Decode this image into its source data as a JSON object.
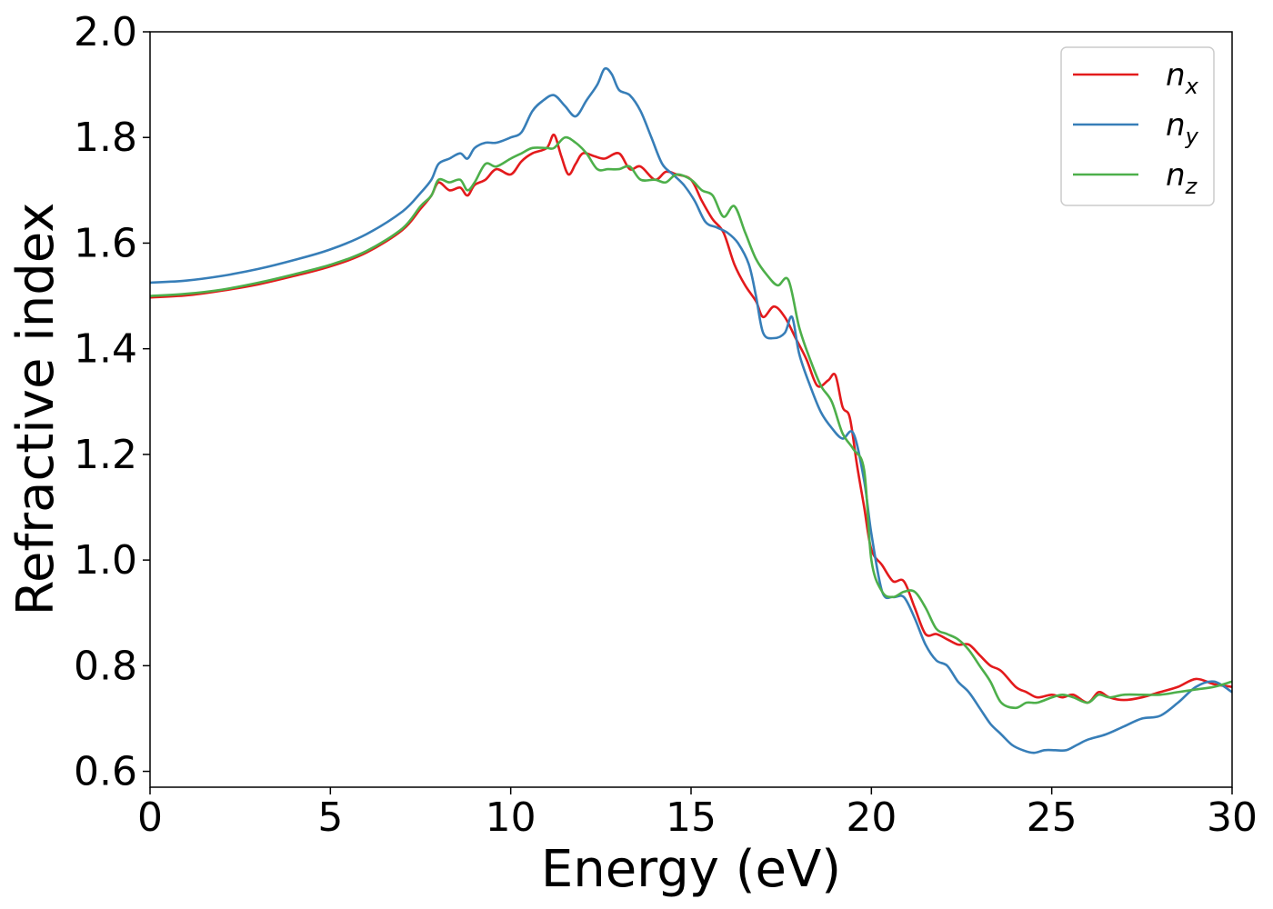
{
  "chart_data": {
    "type": "line",
    "xlabel": "Energy (eV)",
    "ylabel": "Refractive index",
    "xlim": [
      0,
      30
    ],
    "ylim": [
      0.57,
      2.0
    ],
    "xticks": [
      0,
      5,
      10,
      15,
      20,
      25,
      30
    ],
    "yticks": [
      0.6,
      0.8,
      1.0,
      1.2,
      1.4,
      1.6,
      1.8,
      2.0
    ],
    "xtick_labels": [
      "0",
      "5",
      "10",
      "15",
      "20",
      "25",
      "30"
    ],
    "ytick_labels": [
      "0.6",
      "0.8",
      "1.0",
      "1.2",
      "1.4",
      "1.6",
      "1.8",
      "2.0"
    ],
    "grid": false,
    "legend_position": "top-right",
    "series": [
      {
        "name": "n_x",
        "legend_base": "n",
        "legend_sub": "x",
        "color": "#e31a1c",
        "x": [
          0,
          1,
          2,
          3,
          4,
          5,
          6,
          7,
          7.5,
          7.8,
          8.0,
          8.3,
          8.6,
          8.8,
          9.0,
          9.3,
          9.6,
          10.0,
          10.3,
          10.6,
          11.0,
          11.2,
          11.4,
          11.6,
          11.8,
          12.0,
          12.3,
          12.6,
          13.0,
          13.3,
          13.6,
          14.0,
          14.3,
          14.6,
          15.0,
          15.3,
          15.6,
          15.9,
          16.2,
          16.5,
          16.8,
          17.0,
          17.3,
          17.6,
          17.9,
          18.2,
          18.5,
          18.8,
          19.0,
          19.2,
          19.4,
          19.6,
          19.8,
          20.0,
          20.3,
          20.6,
          20.9,
          21.2,
          21.5,
          21.8,
          22.1,
          22.4,
          22.7,
          23.0,
          23.3,
          23.6,
          24.0,
          24.3,
          24.6,
          25.0,
          25.3,
          25.6,
          26.0,
          26.3,
          26.6,
          27.0,
          27.5,
          28.0,
          28.5,
          29.0,
          29.5,
          30.0
        ],
        "y": [
          1.497,
          1.501,
          1.51,
          1.522,
          1.538,
          1.556,
          1.582,
          1.625,
          1.665,
          1.69,
          1.715,
          1.7,
          1.705,
          1.69,
          1.71,
          1.72,
          1.74,
          1.73,
          1.755,
          1.77,
          1.78,
          1.805,
          1.765,
          1.73,
          1.75,
          1.77,
          1.765,
          1.76,
          1.77,
          1.74,
          1.745,
          1.72,
          1.735,
          1.73,
          1.72,
          1.68,
          1.645,
          1.62,
          1.56,
          1.52,
          1.49,
          1.46,
          1.48,
          1.46,
          1.42,
          1.38,
          1.33,
          1.34,
          1.35,
          1.29,
          1.27,
          1.18,
          1.1,
          1.02,
          0.99,
          0.96,
          0.96,
          0.91,
          0.86,
          0.86,
          0.85,
          0.84,
          0.84,
          0.82,
          0.8,
          0.79,
          0.76,
          0.75,
          0.74,
          0.745,
          0.74,
          0.745,
          0.73,
          0.75,
          0.74,
          0.735,
          0.74,
          0.75,
          0.76,
          0.775,
          0.765,
          0.76
        ]
      },
      {
        "name": "n_y",
        "legend_base": "n",
        "legend_sub": "y",
        "color": "#377eb8",
        "x": [
          0,
          1,
          2,
          3,
          4,
          5,
          6,
          7,
          7.5,
          7.8,
          8.0,
          8.3,
          8.6,
          8.8,
          9.0,
          9.3,
          9.6,
          10.0,
          10.3,
          10.6,
          10.9,
          11.2,
          11.5,
          11.8,
          12.1,
          12.4,
          12.6,
          12.8,
          13.0,
          13.3,
          13.6,
          13.9,
          14.2,
          14.5,
          14.8,
          15.1,
          15.4,
          15.7,
          16.0,
          16.3,
          16.6,
          16.8,
          17.0,
          17.3,
          17.6,
          17.8,
          18.0,
          18.3,
          18.6,
          18.9,
          19.2,
          19.5,
          19.8,
          20.0,
          20.3,
          20.6,
          20.9,
          21.2,
          21.5,
          21.8,
          22.1,
          22.4,
          22.7,
          23.0,
          23.3,
          23.6,
          23.9,
          24.2,
          24.5,
          24.8,
          25.1,
          25.4,
          25.7,
          26.0,
          26.5,
          27.0,
          27.5,
          28.0,
          28.5,
          29.0,
          29.5,
          30.0
        ],
        "y": [
          1.525,
          1.529,
          1.538,
          1.551,
          1.568,
          1.588,
          1.617,
          1.66,
          1.695,
          1.72,
          1.75,
          1.76,
          1.77,
          1.76,
          1.78,
          1.79,
          1.79,
          1.8,
          1.81,
          1.85,
          1.87,
          1.88,
          1.86,
          1.84,
          1.87,
          1.9,
          1.93,
          1.92,
          1.89,
          1.88,
          1.85,
          1.8,
          1.75,
          1.73,
          1.71,
          1.68,
          1.64,
          1.63,
          1.62,
          1.6,
          1.56,
          1.5,
          1.43,
          1.42,
          1.43,
          1.46,
          1.39,
          1.33,
          1.28,
          1.25,
          1.23,
          1.24,
          1.15,
          1.05,
          0.94,
          0.93,
          0.93,
          0.89,
          0.84,
          0.81,
          0.8,
          0.77,
          0.75,
          0.72,
          0.69,
          0.67,
          0.65,
          0.64,
          0.635,
          0.64,
          0.64,
          0.64,
          0.65,
          0.66,
          0.67,
          0.685,
          0.7,
          0.705,
          0.73,
          0.76,
          0.77,
          0.75
        ]
      },
      {
        "name": "n_z",
        "legend_base": "n",
        "legend_sub": "z",
        "color": "#4daf4a",
        "x": [
          0,
          1,
          2,
          3,
          4,
          5,
          6,
          7,
          7.5,
          7.8,
          8.0,
          8.3,
          8.6,
          8.8,
          9.0,
          9.3,
          9.6,
          10.0,
          10.3,
          10.6,
          11.0,
          11.2,
          11.5,
          11.8,
          12.1,
          12.4,
          12.7,
          13.0,
          13.3,
          13.6,
          14.0,
          14.3,
          14.6,
          15.0,
          15.3,
          15.6,
          15.9,
          16.2,
          16.5,
          16.8,
          17.1,
          17.4,
          17.7,
          18.0,
          18.3,
          18.6,
          18.9,
          19.2,
          19.5,
          19.8,
          20.0,
          20.3,
          20.6,
          20.9,
          21.2,
          21.5,
          21.8,
          22.1,
          22.4,
          22.7,
          23.0,
          23.3,
          23.6,
          24.0,
          24.3,
          24.6,
          25.0,
          25.3,
          25.6,
          26.0,
          26.3,
          26.6,
          27.0,
          27.5,
          28.0,
          28.5,
          29.0,
          29.5,
          30.0
        ],
        "y": [
          1.5,
          1.504,
          1.512,
          1.525,
          1.541,
          1.559,
          1.585,
          1.628,
          1.67,
          1.69,
          1.72,
          1.715,
          1.72,
          1.7,
          1.715,
          1.75,
          1.745,
          1.76,
          1.77,
          1.78,
          1.78,
          1.78,
          1.8,
          1.79,
          1.77,
          1.74,
          1.74,
          1.74,
          1.745,
          1.72,
          1.72,
          1.715,
          1.73,
          1.72,
          1.7,
          1.69,
          1.65,
          1.67,
          1.62,
          1.57,
          1.54,
          1.52,
          1.53,
          1.44,
          1.38,
          1.33,
          1.3,
          1.24,
          1.21,
          1.17,
          1.0,
          0.94,
          0.93,
          0.94,
          0.94,
          0.91,
          0.87,
          0.86,
          0.85,
          0.83,
          0.8,
          0.77,
          0.73,
          0.72,
          0.73,
          0.73,
          0.74,
          0.745,
          0.74,
          0.73,
          0.745,
          0.74,
          0.745,
          0.745,
          0.745,
          0.75,
          0.755,
          0.76,
          0.77
        ]
      }
    ]
  }
}
